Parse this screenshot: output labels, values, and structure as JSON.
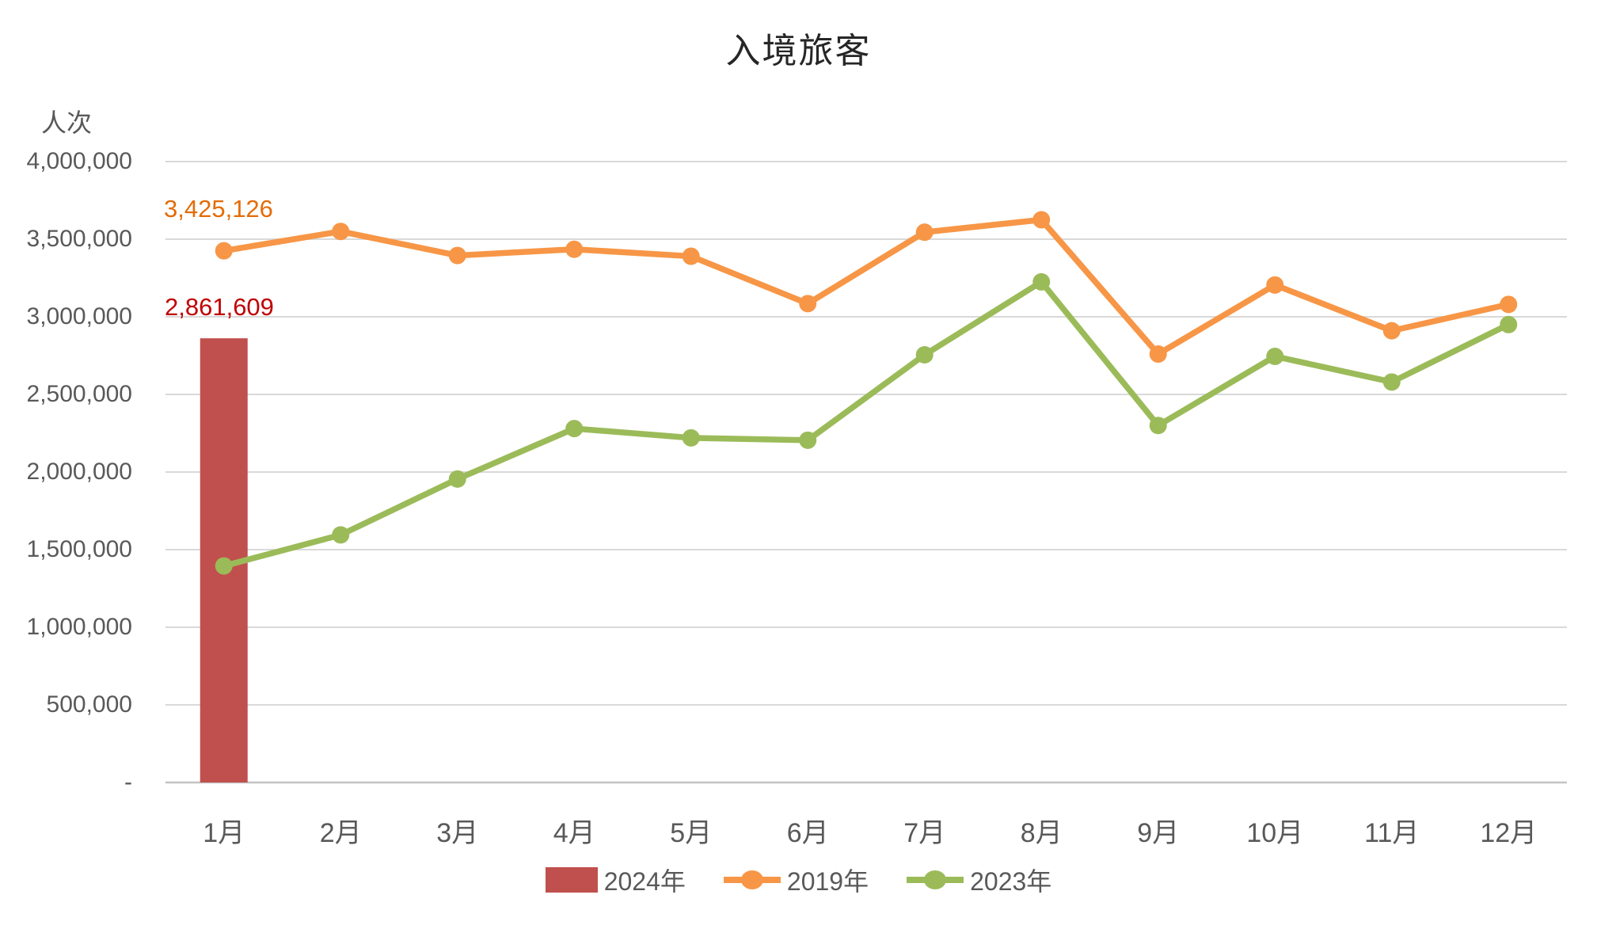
{
  "colors": {
    "bar_2024": "#C0504D",
    "line_2019": "#F79646",
    "line_2023": "#9BBB59",
    "label_2019": "#E36C09",
    "label_2024": "#C00000",
    "gridline": "#D9D9D9",
    "axis_line": "#C3C3C3",
    "axis_text": "#595959",
    "title_text": "#262626"
  },
  "chart_data": {
    "type": "combo: bar + line",
    "title": "入境旅客",
    "ylabel": "人次",
    "xlabel": "",
    "ylim": [
      0,
      4000000
    ],
    "ytick_step": 500000,
    "ytick_labels_top_to_bottom": [
      "4,000,000",
      "3,500,000",
      "3,000,000",
      "2,500,000",
      "2,000,000",
      "1,500,000",
      "1,000,000",
      "500,000",
      "-"
    ],
    "grid": true,
    "legend_position": "bottom",
    "categories": [
      "1月",
      "2月",
      "3月",
      "4月",
      "5月",
      "6月",
      "7月",
      "8月",
      "9月",
      "10月",
      "11月",
      "12月"
    ],
    "series": [
      {
        "name": "2024年",
        "type": "bar",
        "color_key": "bar_2024",
        "values": [
          2861609,
          null,
          null,
          null,
          null,
          null,
          null,
          null,
          null,
          null,
          null,
          null
        ],
        "data_label": {
          "month": "1月",
          "text": "2,861,609"
        }
      },
      {
        "name": "2019年",
        "type": "line",
        "color_key": "line_2019",
        "values": [
          3425126,
          3550000,
          3395000,
          3435000,
          3390000,
          3085000,
          3545000,
          3625000,
          2760000,
          3205000,
          2910000,
          3080000
        ],
        "data_label": {
          "month": "1月",
          "text": "3,425,126"
        }
      },
      {
        "name": "2023年",
        "type": "line",
        "color_key": "line_2023",
        "values": [
          1395000,
          1595000,
          1955000,
          2280000,
          2220000,
          2205000,
          2755000,
          3225000,
          2300000,
          2745000,
          2580000,
          2950000
        ]
      }
    ]
  }
}
